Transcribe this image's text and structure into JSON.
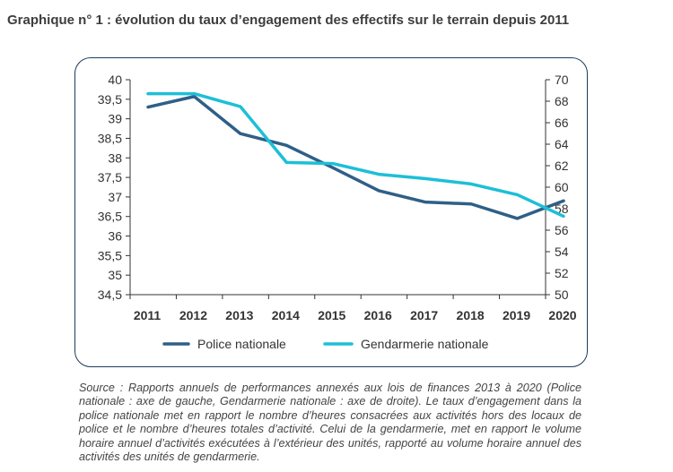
{
  "title": "Graphique n° 1 : évolution du taux d’engagement des effectifs sur le terrain depuis 2011",
  "source": "Source : Rapports annuels de performances annexés aux lois de finances 2013 à 2020 (Police nationale : axe de gauche, Gendarmerie nationale : axe de droite). Le taux d’engagement dans la police nationale met en rapport le nombre d’heures consacrées aux activités hors des locaux de police et le nombre d’heures totales d’activité. Celui de la gendarmerie, met en rapport le volume horaire annuel d’activités exécutées à l’extérieur des unités, rapporté au volume horaire annuel des activités des unités de gendarmerie.",
  "colors": {
    "police": "#2e5f87",
    "gendarmerie": "#1dbfd6",
    "axis": "#333333",
    "frame": "#1f3a5f"
  },
  "chart_data": {
    "type": "line",
    "x": [
      "2011",
      "2012",
      "2013",
      "2014",
      "2015",
      "2016",
      "2017",
      "2018",
      "2019",
      "2020"
    ],
    "series": [
      {
        "name": "Police nationale",
        "axis": "left",
        "values": [
          39.3,
          39.57,
          38.62,
          38.32,
          37.75,
          37.16,
          36.87,
          36.82,
          36.45,
          36.9
        ]
      },
      {
        "name": "Gendarmerie nationale",
        "axis": "right",
        "values": [
          68.7,
          68.7,
          67.5,
          62.3,
          62.2,
          61.2,
          60.8,
          60.3,
          59.3,
          57.3
        ]
      }
    ],
    "y_left": {
      "min": 34.5,
      "max": 40,
      "ticks": [
        "34,5",
        "35",
        "35,5",
        "36",
        "36,5",
        "37",
        "37,5",
        "38",
        "38,5",
        "39",
        "39,5",
        "40"
      ]
    },
    "y_right": {
      "min": 50,
      "max": 70,
      "ticks": [
        "50",
        "52",
        "54",
        "56",
        "58",
        "60",
        "62",
        "64",
        "66",
        "68",
        "70"
      ]
    },
    "grid": false,
    "legend_position": "bottom"
  }
}
